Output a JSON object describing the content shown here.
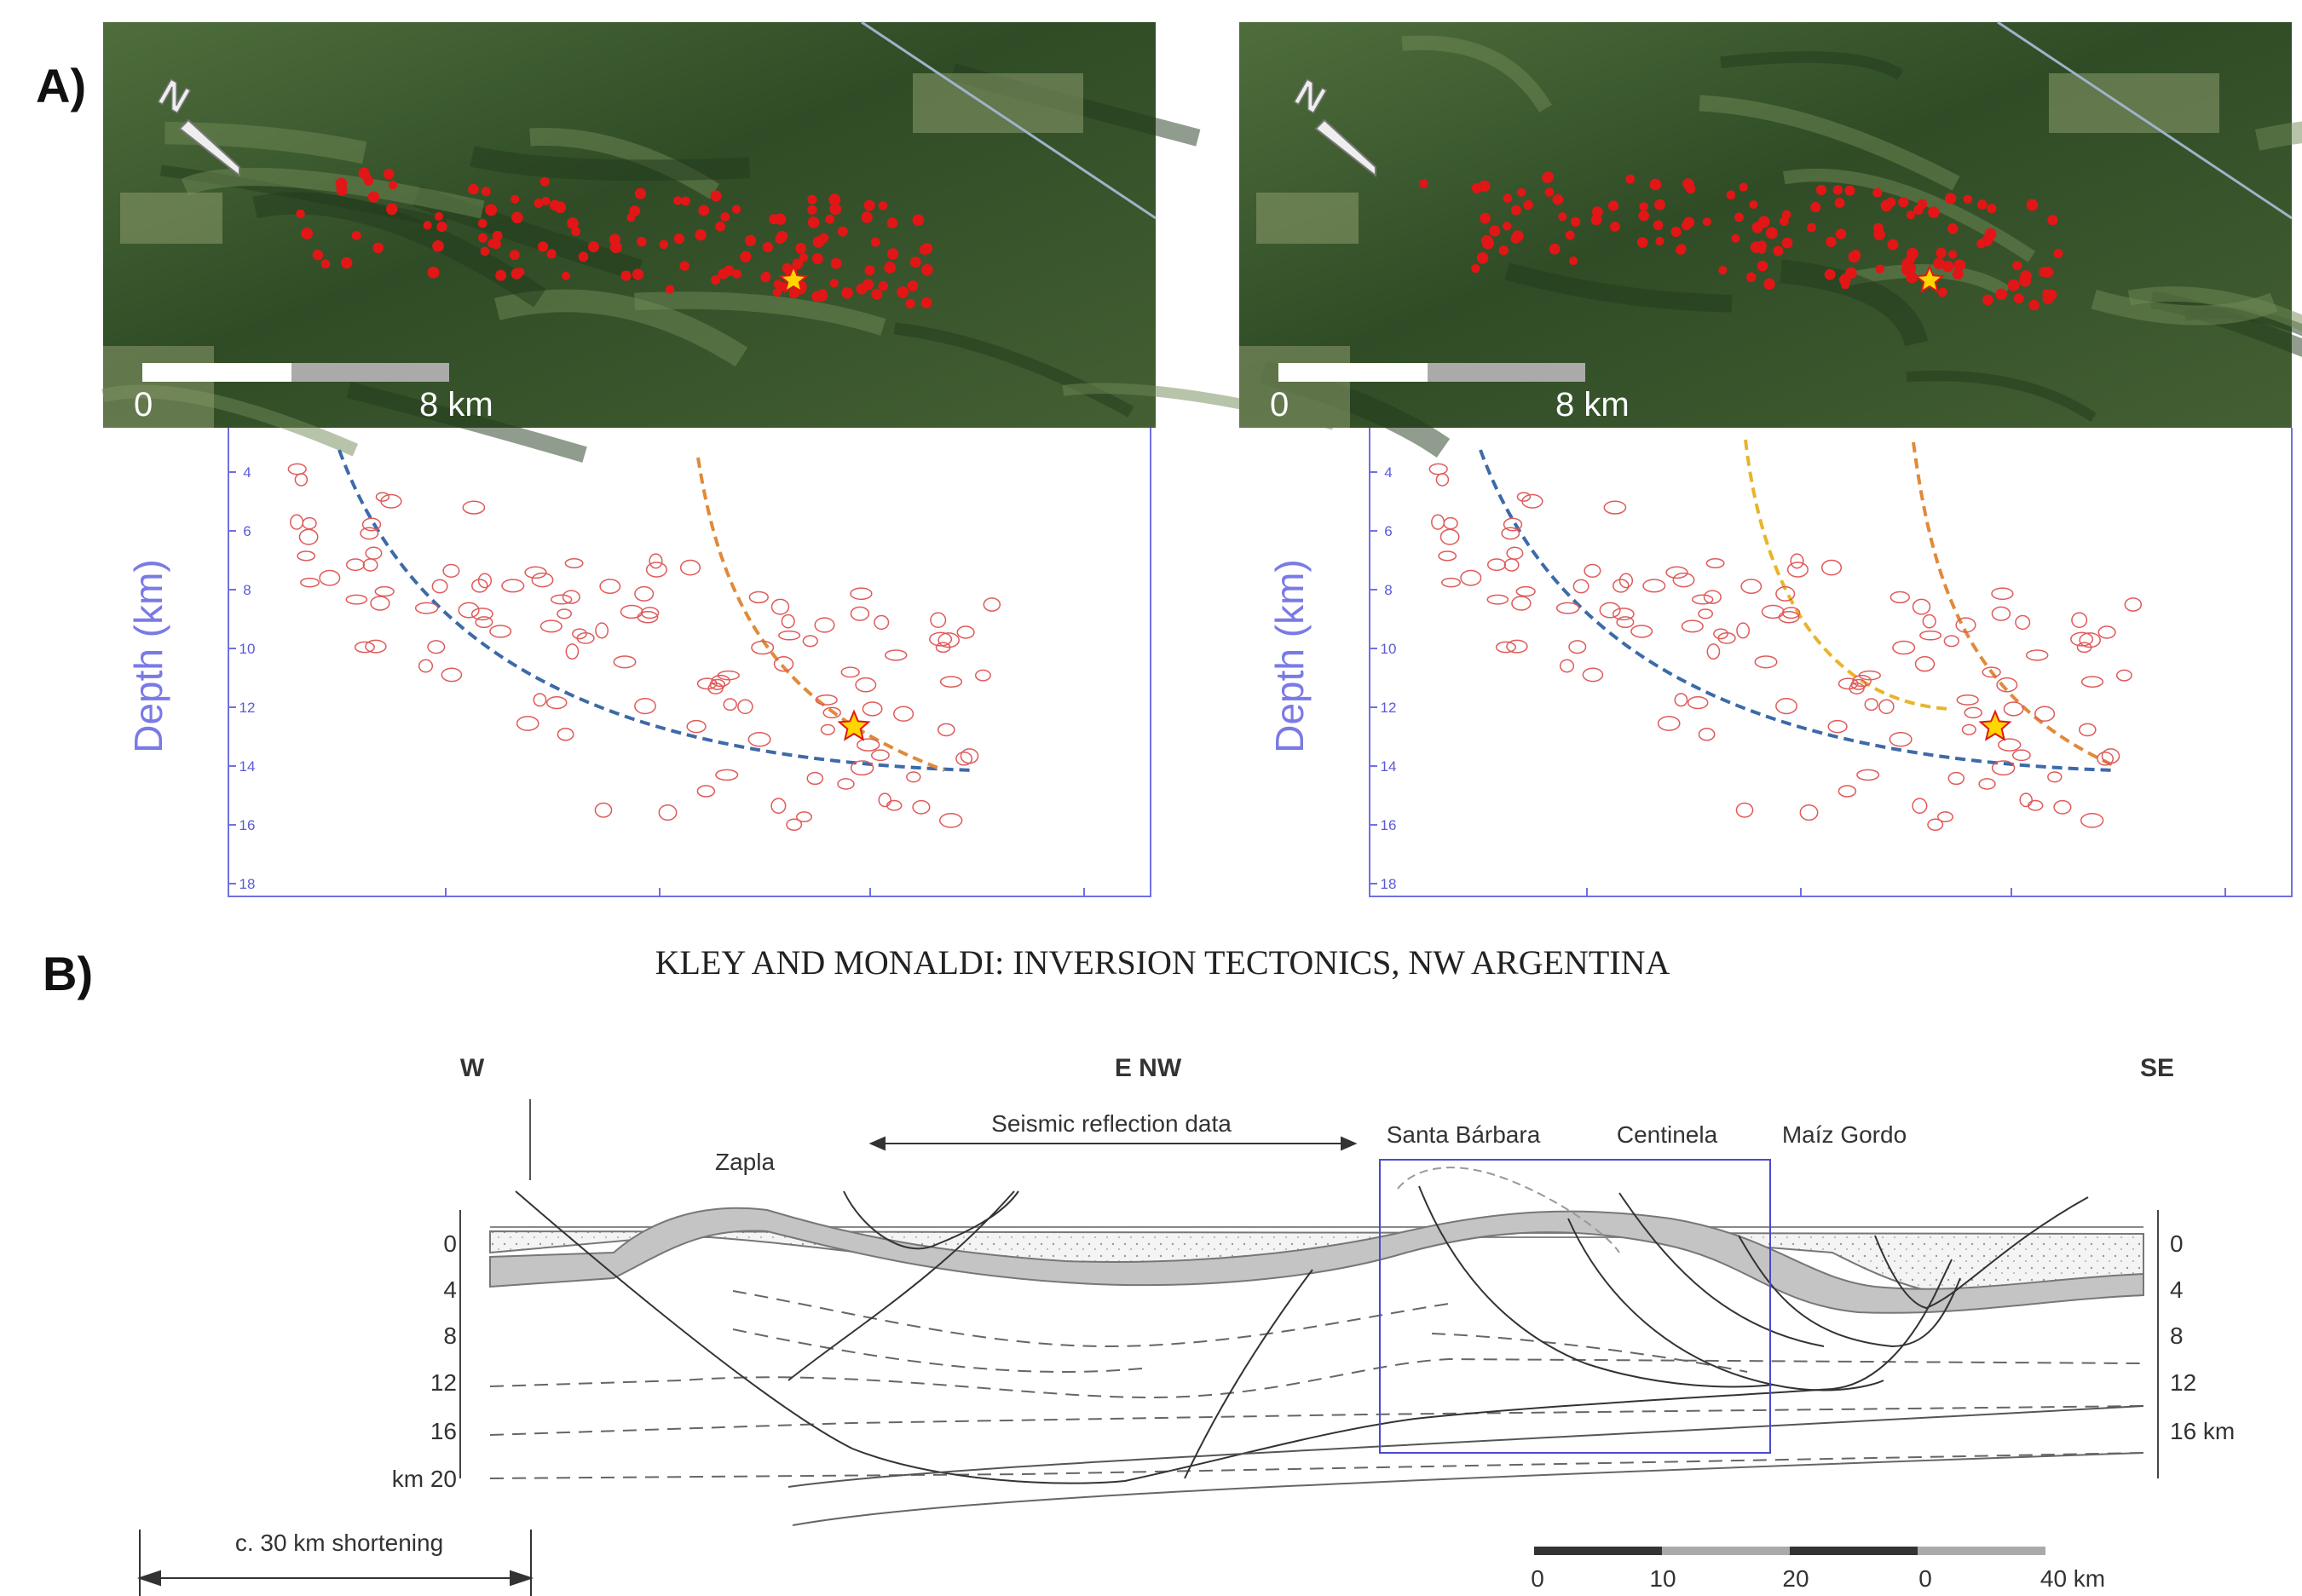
{
  "panel_a": {
    "label": "A)",
    "maps": [
      {
        "scale_start": "0",
        "scale_end": "8 km",
        "north": "N"
      },
      {
        "scale_start": "0",
        "scale_end": "8 km",
        "north": "N"
      }
    ],
    "sections": [
      {
        "axis_label": "Depth (km)",
        "depth_ticks": [
          4,
          6,
          8,
          10,
          12,
          14,
          16,
          18
        ]
      },
      {
        "axis_label": "Depth (km)",
        "depth_ticks": [
          4,
          6,
          8,
          10,
          12,
          14,
          16,
          18
        ]
      }
    ]
  },
  "panel_b": {
    "label": "B)",
    "title": "KLEY AND MONALDI: INVERSION TECTONICS, NW ARGENTINA",
    "directions": [
      "W",
      "E NW",
      "SE"
    ],
    "annotation": "Seismic reflection data",
    "localities": [
      "Zapla",
      "Santa Bárbara",
      "Centinela",
      "Maíz Gordo"
    ],
    "depth_left": [
      "0",
      "4",
      "8",
      "12",
      "16",
      "km 20"
    ],
    "depth_right": [
      "0",
      "4",
      "8",
      "12",
      "16 km"
    ],
    "shortening": "c. 30 km shortening",
    "scale_labels": [
      "0",
      "10",
      "20",
      "0",
      "40 km"
    ]
  }
}
